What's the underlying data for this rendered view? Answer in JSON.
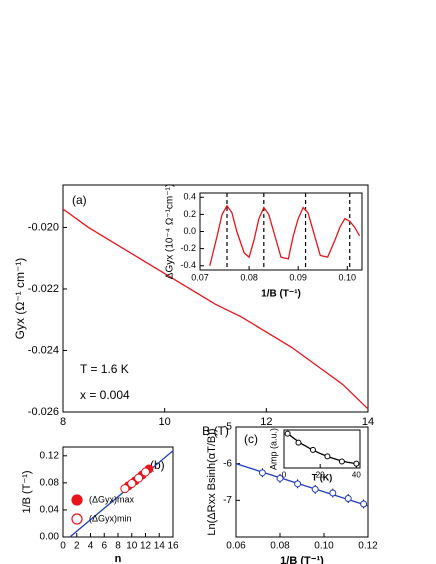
{
  "chart_data": [
    {
      "type": "line",
      "panel_label": "(a)",
      "notes": [
        "T = 1.6 K",
        "x = 0.004"
      ],
      "xlabel": "B (T)",
      "ylabel": "Gyx (Ω⁻¹ cm⁻¹)",
      "xlim": [
        8,
        14
      ],
      "xticks": [
        8,
        10,
        12,
        14
      ],
      "ylim": [
        -0.026,
        -0.01862
      ],
      "yticks": [
        {
          "value": -0.02,
          "label": "-0.020"
        },
        -0.022,
        -0.024,
        -0.026
      ],
      "series": [
        {
          "kind": "line",
          "color": "#e8141c",
          "x": [
            8,
            8.5,
            9,
            9.5,
            10,
            10.5,
            11,
            11.5,
            12,
            12.5,
            13,
            13.5,
            14
          ],
          "values": [
            -0.0194,
            -0.02,
            -0.0205,
            -0.021,
            -0.0215,
            -0.022,
            -0.0225,
            -0.0229,
            -0.0234,
            -0.0239,
            -0.0245,
            -0.0251,
            -0.0259
          ]
        }
      ]
    },
    {
      "type": "line",
      "xlabel": "1/B (T⁻¹)",
      "ylabel": "ΔGyx (10⁻⁴ Ω⁻¹cm⁻¹)",
      "xlim": [
        0.07,
        0.103
      ],
      "xticks": [
        0.07,
        0.08,
        0.09,
        {
          "value": 0.1,
          "label": "0.10"
        }
      ],
      "ylim": [
        -0.45,
        0.45
      ],
      "yticks": [
        0.4,
        0.2,
        {
          "value": 0,
          "label": "0.0"
        },
        -0.2,
        -0.4
      ],
      "series": [
        {
          "kind": "vline",
          "color": "#000000",
          "x": [
            0.0755,
            0.083,
            0.0915,
            0.1005
          ]
        },
        {
          "kind": "line",
          "color": "#e8141c",
          "x": [
            0.072,
            0.0735,
            0.0745,
            0.0755,
            0.0765,
            0.0775,
            0.079,
            0.08,
            0.081,
            0.082,
            0.083,
            0.084,
            0.085,
            0.0865,
            0.088,
            0.089,
            0.09,
            0.091,
            0.092,
            0.093,
            0.0945,
            0.096,
            0.0975,
            0.0985,
            0.0995,
            0.1005,
            0.1015,
            0.1025
          ],
          "values": [
            -0.4,
            -0.05,
            0.2,
            0.3,
            0.22,
            0,
            -0.25,
            -0.3,
            -0.1,
            0.15,
            0.28,
            0.2,
            0,
            -0.3,
            -0.32,
            -0.05,
            0.15,
            0.28,
            0.22,
            0.02,
            -0.28,
            -0.3,
            -0.1,
            0.05,
            0.15,
            0.12,
            0.05,
            -0.05
          ]
        }
      ]
    },
    {
      "type": "scatter",
      "panel_label": "(b)",
      "xlabel": "n",
      "ylabel": "1/B (T⁻¹)",
      "xlim": [
        0,
        16
      ],
      "xticks": [
        0,
        2,
        4,
        6,
        8,
        10,
        12,
        14,
        16
      ],
      "ylim": [
        0,
        0.133
      ],
      "yticks": [
        {
          "value": 0,
          "label": "0.00"
        },
        0.04,
        0.08,
        0.12
      ],
      "series": [
        {
          "kind": "line",
          "color": "#1f3fbf",
          "x": [
            1,
            16
          ],
          "values": [
            0,
            0.1275
          ]
        },
        {
          "kind": "points",
          "name": "(ΔGyx)max",
          "filled": true,
          "color": "#e8141c",
          "x": [
            9.5,
            10.5,
            11.5,
            12.5
          ],
          "values": [
            0.0755,
            0.083,
            0.0915,
            0.1005
          ]
        },
        {
          "kind": "points",
          "name": "(ΔGyx)min",
          "filled": false,
          "color": "#e8141c",
          "x": [
            9,
            10,
            11,
            12
          ],
          "values": [
            0.0715,
            0.079,
            0.087,
            0.096
          ]
        }
      ]
    },
    {
      "type": "scatter",
      "panel_label": "(c)",
      "xlabel": "1/B (T⁻¹)",
      "ylabel": "Ln(ΔRxx Bsinh(αT/B))",
      "xlim": [
        0.06,
        0.12
      ],
      "xticks": [
        0.06,
        0.08,
        {
          "value": 0.1,
          "label": "0.10"
        },
        0.12
      ],
      "ylim": [
        -8,
        -5
      ],
      "yticks": [
        -7,
        -6,
        -5
      ],
      "series": [
        {
          "kind": "line",
          "color": "#1f3fbf",
          "x": [
            0.06,
            0.12
          ],
          "values": [
            -6.0,
            -7.15
          ]
        },
        {
          "kind": "points",
          "filled": false,
          "color": "#1f3fbf",
          "x": [
            0.072,
            0.08,
            0.088,
            0.096,
            0.104,
            0.111,
            0.118
          ],
          "values": [
            -6.25,
            -6.4,
            -6.55,
            -6.7,
            -6.8,
            -6.95,
            -7.1
          ],
          "errors": [
            0.12,
            0.12,
            0.12,
            0.12,
            0.12,
            0.12,
            0.12
          ]
        }
      ]
    },
    {
      "type": "scatter",
      "xlabel": "T (K)",
      "ylabel": "Amp (a.u.)",
      "xlim": [
        0,
        42
      ],
      "xticks": [
        0,
        20,
        40
      ],
      "ylim": [
        0,
        1.05
      ],
      "yticks": [],
      "series": [
        {
          "kind": "line",
          "color": "#000000",
          "x": [
            2,
            6,
            10,
            15,
            20,
            25,
            30,
            35,
            40
          ],
          "values": [
            0.95,
            0.8,
            0.66,
            0.52,
            0.4,
            0.3,
            0.22,
            0.16,
            0.12
          ]
        },
        {
          "kind": "points",
          "filled": false,
          "color": "#000000",
          "x": [
            2,
            8,
            16,
            24,
            32,
            40
          ],
          "values": [
            0.95,
            0.7,
            0.5,
            0.32,
            0.18,
            0.12
          ]
        }
      ]
    }
  ]
}
